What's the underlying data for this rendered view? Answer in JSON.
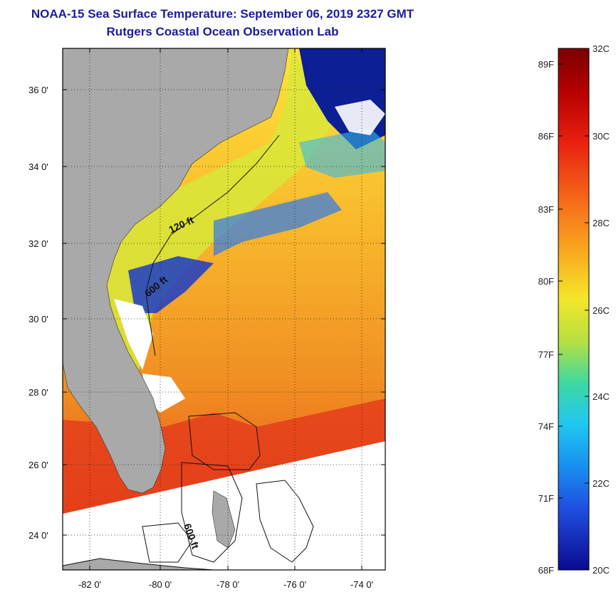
{
  "title": {
    "line1": "NOAA-15 Sea Surface Temperature:  September 06, 2019 2327 GMT",
    "line2": "Rutgers Coastal Ocean Observation Lab"
  },
  "map": {
    "lat_labels": [
      "36 0'",
      "34 0'",
      "32 0'",
      "30 0'",
      "28 0'",
      "26 0'",
      "24 0'"
    ],
    "lon_labels": [
      "-82 0'",
      "-80 0'",
      "-78 0'",
      "-76 0'",
      "-74 0'"
    ],
    "contour_labels": [
      "120 ft",
      "600 ft",
      "600 ft"
    ]
  },
  "colorbar": {
    "fahrenheit_labels": [
      "89F",
      "86F",
      "83F",
      "80F",
      "77F",
      "74F",
      "71F",
      "68F"
    ],
    "celsius_labels": [
      "32C",
      "30C",
      "28C",
      "26C",
      "24C",
      "22C",
      "20C"
    ]
  },
  "colors": {
    "title": "#1c1c9c",
    "land": "#a9a9a9",
    "ocean_warm": "#f39a1f",
    "ocean_hot": "#e6321b",
    "ocean_cool": "#2b4fd6",
    "ocean_deep": "#0a1a8a"
  }
}
